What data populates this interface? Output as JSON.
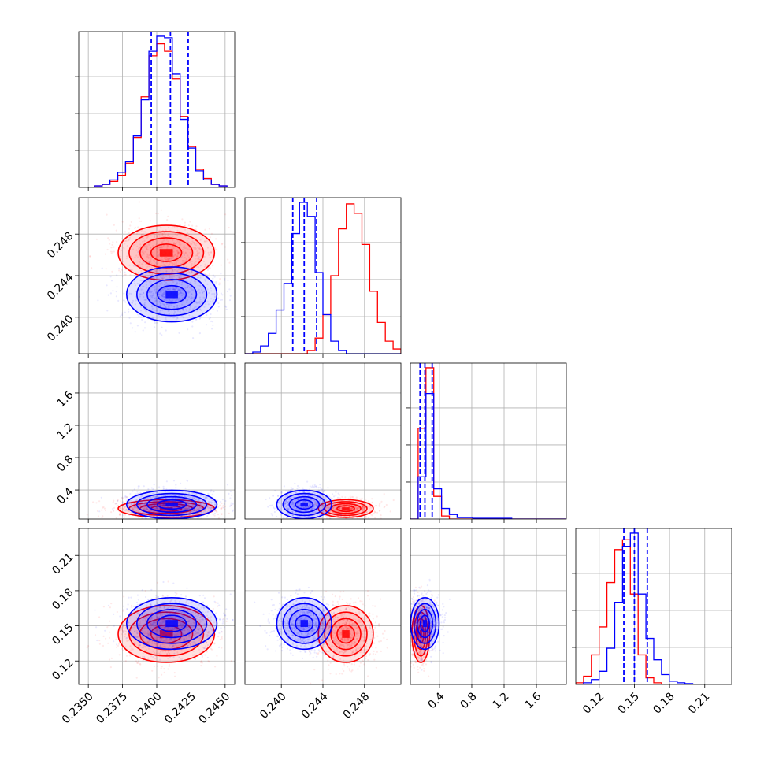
{
  "chart_data": {
    "type": "corner",
    "colors": {
      "series_a": "#ff0000",
      "series_b": "#0000ff"
    },
    "grid": true,
    "parameters": [
      {
        "range": [
          0.2343,
          0.2457
        ],
        "ticks": [
          0.235,
          0.2375,
          0.24,
          0.2425,
          0.245
        ],
        "tick_labels": [
          "0.2350",
          "0.2375",
          "0.2400",
          "0.2425",
          "0.2450"
        ]
      },
      {
        "range": [
          0.2365,
          0.2515
        ],
        "ticks": [
          0.24,
          0.244,
          0.248
        ],
        "tick_labels": [
          "0.240",
          "0.244",
          "0.248"
        ]
      },
      {
        "range": [
          0.04,
          1.97
        ],
        "ticks": [
          0.4,
          0.8,
          1.2,
          1.6
        ],
        "tick_labels": [
          "0.4",
          "0.8",
          "1.2",
          "1.6"
        ]
      },
      {
        "range": [
          0.1,
          0.233
        ],
        "ticks": [
          0.12,
          0.15,
          0.18,
          0.21
        ],
        "tick_labels": [
          "0.12",
          "0.15",
          "0.18",
          "0.21"
        ]
      }
    ],
    "series": [
      {
        "color": "#ff0000",
        "mean": [
          0.2407,
          0.2462,
          0.17,
          0.143
        ],
        "sd": [
          0.0016,
          0.0012,
          0.05,
          0.011
        ],
        "hist": [
          [
            0,
            0,
            1,
            2,
            4,
            8,
            16,
            33,
            60,
            87,
            95,
            90,
            72,
            47,
            27,
            12,
            6,
            2,
            1,
            0
          ],
          [
            0,
            0,
            0,
            0,
            0,
            0,
            0,
            0,
            2,
            10,
            25,
            50,
            80,
            96,
            90,
            70,
            40,
            20,
            8,
            3
          ],
          [
            0,
            60,
            100,
            15,
            2,
            0,
            0,
            0,
            0,
            0,
            0,
            0,
            0,
            0,
            0,
            0,
            0,
            0,
            0,
            0
          ],
          [
            1,
            5,
            18,
            35,
            62,
            82,
            88,
            55,
            18,
            4,
            1,
            0,
            0,
            0,
            0,
            0,
            0,
            0,
            0,
            0
          ]
        ]
      },
      {
        "color": "#0000ff",
        "mean": [
          0.2411,
          0.2422,
          0.22,
          0.152
        ],
        "sd": [
          0.0015,
          0.0012,
          0.08,
          0.01
        ],
        "hist": [
          [
            0,
            0,
            1,
            2,
            5,
            10,
            17,
            34,
            58,
            90,
            100,
            99,
            75,
            45,
            26,
            11,
            5,
            2,
            1,
            0
          ],
          [
            0,
            1,
            5,
            13,
            28,
            45,
            77,
            97,
            88,
            52,
            25,
            8,
            2,
            0,
            0,
            0,
            0,
            0,
            0,
            0
          ],
          [
            0,
            28,
            83,
            20,
            7,
            3,
            1,
            1,
            0.5,
            0.5,
            0.5,
            0.5,
            0.5,
            0,
            0,
            0,
            0,
            0,
            0,
            0
          ],
          [
            0,
            1,
            3,
            8,
            22,
            50,
            84,
            92,
            55,
            28,
            15,
            6,
            2,
            1,
            0.5,
            0,
            0,
            0,
            0,
            0
          ]
        ]
      }
    ],
    "quantiles_series_b": [
      [
        0.2396,
        0.241,
        0.2423
      ],
      [
        0.2411,
        0.2422,
        0.2434
      ],
      [
        0.16,
        0.22,
        0.31
      ],
      [
        0.141,
        0.15,
        0.161
      ]
    ]
  }
}
